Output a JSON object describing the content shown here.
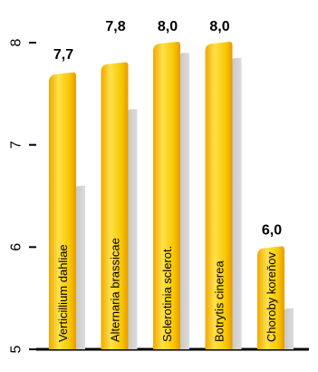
{
  "chart_data": {
    "type": "bar",
    "title": "",
    "xlabel": "",
    "ylabel": "",
    "ylim": [
      5,
      8
    ],
    "yticks": [
      5,
      6,
      7,
      8
    ],
    "ytick_labels": [
      "5",
      "6",
      "7",
      "8"
    ],
    "categories": [
      "Verticillium dahliae",
      "Alternaria brassicae",
      "Sclerotinia sclerot.",
      "Botrytis cinerea",
      "Choroby koreňov"
    ],
    "series": [
      {
        "values": [
          7.7,
          7.8,
          8.0,
          8.0,
          6.0
        ],
        "data_labels": [
          "7,7",
          "7,8",
          "8,0",
          "8,0",
          "6,0"
        ],
        "color": "#F5C400"
      },
      {
        "values": [
          6.6,
          7.35,
          7.9,
          7.85,
          5.4
        ],
        "color": "#D0D0D0"
      }
    ],
    "grid": false,
    "legend": "none"
  }
}
